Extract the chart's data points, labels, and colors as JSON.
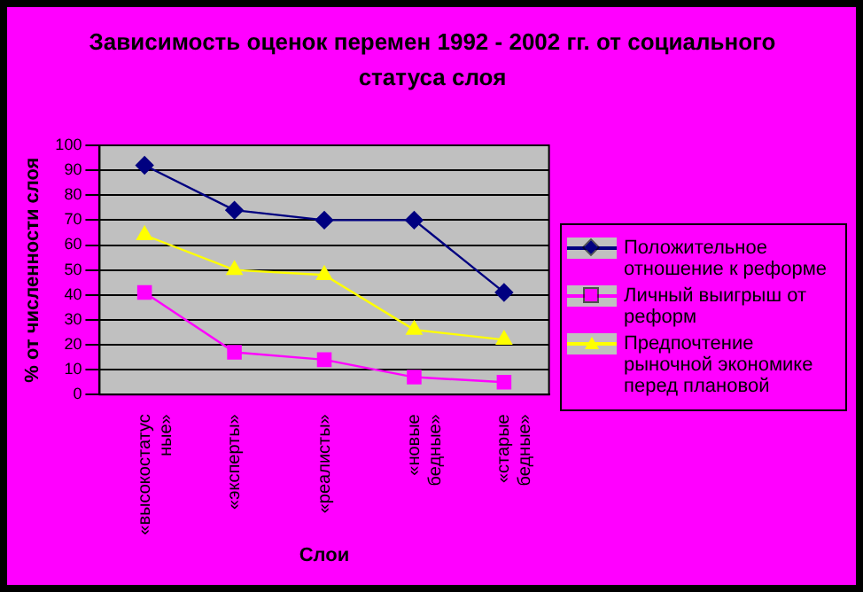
{
  "chart_data": {
    "type": "line",
    "title": "Зависимость оценок перемен 1992 - 2002 гг. от социального статуса слоя",
    "xlabel": "Слои",
    "ylabel": "% от численности слоя",
    "categories": [
      "«высокостатусные»",
      "«эксперты»",
      "«реалисты»",
      "«новые бедные»",
      "«старые бедные»"
    ],
    "series": [
      {
        "name": "Положительное отношение к реформе",
        "color": "#000080",
        "marker": "diamond",
        "values": [
          92,
          74,
          70,
          70,
          41
        ]
      },
      {
        "name": "Личный выигрыш от реформ",
        "color": "#ff00ff",
        "marker": "square",
        "values": [
          41,
          17,
          14,
          7,
          5
        ]
      },
      {
        "name": "Предпочтение рыночной экономике перед плановой",
        "color": "#ffff00",
        "marker": "triangle",
        "values": [
          64,
          50,
          48,
          26,
          22
        ]
      }
    ],
    "ylim": [
      0,
      100
    ],
    "yticks": [
      0,
      10,
      20,
      30,
      40,
      50,
      60,
      70,
      80,
      90,
      100
    ],
    "grid": "y",
    "legend": "right"
  }
}
